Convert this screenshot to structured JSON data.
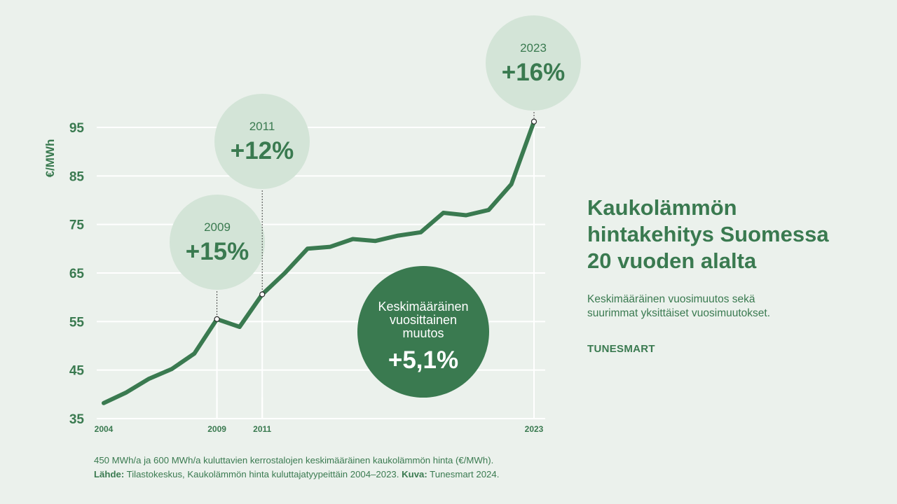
{
  "title_lines": [
    "Kaukolämmön",
    "hintakehitys Suomessa",
    "20 vuoden alalta"
  ],
  "subtitle_lines": [
    "Keskimääräinen vuosimuutos sekä",
    "suurimmat yksittäiset vuosimuutokset."
  ],
  "brand": "TUNESMART",
  "footer": {
    "line1": "450 MWh/a ja 600 MWh/a kuluttavien kerrostalojen keskimääräinen kaukolämmön hinta (€/MWh).",
    "source_label": "Lähde:",
    "source_text": " Tilastokeskus,  Kaukolämmön hinta kuluttajatyypeittäin 2004–2023. ",
    "image_label": "Kuva:",
    "image_text": " Tunesmart 2024."
  },
  "colors": {
    "background": "#ebf1ec",
    "line": "#3a7a50",
    "bubble_light": "#d3e4d7",
    "bubble_dark": "#3a7a50",
    "grid": "#ffffff"
  },
  "chart_data": {
    "type": "line",
    "ylabel": "€/MWh",
    "ylim": [
      35,
      95
    ],
    "yticks": [
      95,
      85,
      75,
      65,
      55,
      45,
      35
    ],
    "xlim": [
      2004,
      2023
    ],
    "xticks": [
      2004,
      2009,
      2011,
      2023
    ],
    "x": [
      2004,
      2005,
      2006,
      2007,
      2008,
      2009,
      2010,
      2011,
      2012,
      2013,
      2014,
      2015,
      2016,
      2017,
      2018,
      2019,
      2020,
      2021,
      2022,
      2023
    ],
    "values": [
      38.2,
      40.4,
      43.2,
      45.2,
      48.4,
      55.5,
      53.9,
      60.6,
      65.0,
      70.0,
      70.4,
      72.0,
      71.6,
      72.7,
      73.4,
      77.4,
      76.9,
      78.0,
      83.3,
      96.2
    ],
    "grid": true,
    "annotations": [
      {
        "year": 2009,
        "label": "2009",
        "value": "+15%"
      },
      {
        "year": 2011,
        "label": "2011",
        "value": "+12%"
      },
      {
        "year": 2023,
        "label": "2023",
        "value": "+16%"
      }
    ],
    "average": {
      "lines": [
        "Keskimääräinen",
        "vuosittainen",
        "muutos"
      ],
      "value": "+5,1%"
    }
  }
}
